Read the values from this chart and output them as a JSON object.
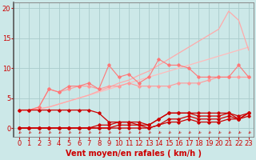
{
  "bg_color": "#cce8e8",
  "grid_color": "#aacccc",
  "xlabel": "Vent moyen/en rafales ( km/h )",
  "xlabel_color": "#cc0000",
  "xlabel_fontsize": 7,
  "tick_color": "#cc0000",
  "tick_fontsize": 6,
  "ylim": [
    -1.5,
    21
  ],
  "xlim": [
    -0.5,
    23.5
  ],
  "yticks": [
    0,
    5,
    10,
    15,
    20
  ],
  "xticks": [
    0,
    1,
    2,
    3,
    4,
    5,
    6,
    7,
    8,
    9,
    10,
    11,
    12,
    13,
    14,
    15,
    16,
    17,
    18,
    19,
    20,
    21,
    22,
    23
  ],
  "x": [
    0,
    1,
    2,
    3,
    4,
    5,
    6,
    7,
    8,
    9,
    10,
    11,
    12,
    13,
    14,
    15,
    16,
    17,
    18,
    19,
    20,
    21,
    22,
    23
  ],
  "line_top_envelope": [
    3.0,
    3.0,
    3.2,
    3.5,
    4.0,
    4.5,
    5.0,
    5.5,
    6.2,
    6.8,
    7.5,
    8.0,
    8.8,
    9.5,
    10.5,
    11.5,
    12.5,
    13.5,
    14.5,
    15.5,
    16.5,
    19.5,
    18.0,
    13.0
  ],
  "line_top_color": "#ffaaaa",
  "line_upper_mid": [
    3.0,
    3.0,
    3.2,
    3.5,
    4.0,
    4.5,
    5.0,
    5.5,
    6.0,
    6.5,
    7.0,
    7.5,
    8.0,
    8.5,
    9.0,
    9.5,
    10.0,
    10.5,
    11.0,
    11.5,
    12.0,
    12.5,
    13.0,
    13.5
  ],
  "line_upper_mid_color": "#ffbbbb",
  "line_zigzag1": [
    3.0,
    3.0,
    3.5,
    6.5,
    6.0,
    7.0,
    7.0,
    7.5,
    6.5,
    10.5,
    8.5,
    9.0,
    7.5,
    8.5,
    11.5,
    10.5,
    10.5,
    10.0,
    8.5,
    8.5,
    8.5,
    8.5,
    10.5,
    8.5
  ],
  "line_zigzag1_color": "#ff7777",
  "line_zigzag2": [
    3.0,
    3.0,
    3.5,
    6.5,
    6.0,
    6.5,
    7.0,
    7.0,
    6.5,
    7.0,
    7.0,
    7.5,
    7.0,
    7.0,
    7.0,
    7.0,
    7.5,
    7.5,
    7.5,
    8.0,
    8.5,
    8.5,
    8.5,
    8.5
  ],
  "line_zigzag2_color": "#ff9999",
  "line_red1": [
    3.0,
    3.0,
    3.0,
    3.0,
    3.0,
    3.0,
    3.0,
    3.0,
    2.5,
    1.0,
    1.0,
    1.0,
    1.0,
    0.5,
    1.5,
    2.5,
    2.5,
    2.5,
    2.5,
    2.5,
    2.5,
    2.5,
    1.5,
    2.5
  ],
  "line_red2": [
    0.0,
    0.0,
    0.0,
    0.0,
    0.0,
    0.0,
    0.0,
    0.0,
    0.5,
    0.5,
    1.0,
    1.0,
    0.5,
    0.5,
    1.5,
    2.5,
    2.5,
    2.5,
    2.0,
    2.0,
    2.0,
    2.5,
    2.0,
    2.5
  ],
  "line_red3": [
    0.0,
    0.0,
    0.0,
    0.0,
    0.0,
    0.0,
    0.0,
    0.0,
    0.0,
    0.0,
    0.5,
    0.5,
    0.5,
    0.0,
    0.5,
    1.5,
    1.5,
    2.0,
    1.5,
    1.5,
    1.5,
    2.0,
    1.5,
    2.0
  ],
  "line_red4": [
    0.0,
    0.0,
    0.0,
    0.0,
    0.0,
    0.0,
    0.0,
    0.0,
    0.0,
    0.0,
    0.0,
    0.0,
    0.0,
    0.0,
    0.5,
    1.0,
    1.0,
    1.5,
    1.0,
    1.0,
    1.0,
    1.5,
    1.5,
    2.5
  ],
  "line_red_color": "#cc0000"
}
